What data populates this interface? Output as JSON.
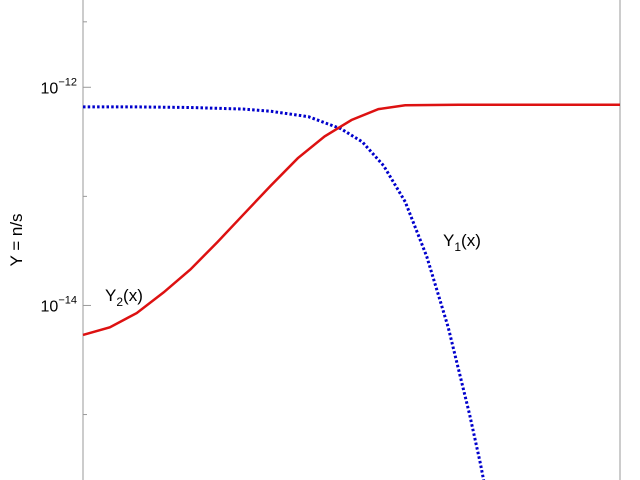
{
  "chart_data": {
    "type": "line",
    "title": "",
    "xlabel": "",
    "ylabel": "Y = n/s",
    "y_scale": "log",
    "ylim_log10": [
      -15.6,
      -11.2
    ],
    "xlim": [
      0,
      1
    ],
    "grid": false,
    "legend": "none",
    "y_major_ticks": [
      {
        "base": "10",
        "exp": "−12",
        "log10": -12
      },
      {
        "base": "10",
        "exp": "−14",
        "log10": -14
      }
    ],
    "y_minor_ticks_log10": [
      -11.4,
      -13,
      -15
    ],
    "series": [
      {
        "name": "Y1(x)",
        "label_main": "Y",
        "label_sub": "1",
        "label_tail": "(x)",
        "color": "#0000cc",
        "style": "dotted",
        "points": [
          [
            0,
            -12.18
          ],
          [
            0.1,
            -12.18
          ],
          [
            0.2,
            -12.185
          ],
          [
            0.3,
            -12.2
          ],
          [
            0.35,
            -12.22
          ],
          [
            0.42,
            -12.27
          ],
          [
            0.48,
            -12.38
          ],
          [
            0.52,
            -12.5
          ],
          [
            0.56,
            -12.72
          ],
          [
            0.6,
            -13.05
          ],
          [
            0.64,
            -13.55
          ],
          [
            0.68,
            -14.2
          ],
          [
            0.72,
            -15.0
          ],
          [
            0.74,
            -15.45
          ],
          [
            0.752,
            -15.75
          ]
        ]
      },
      {
        "name": "Y2(x)",
        "label_main": "Y",
        "label_sub": "2",
        "label_tail": "(x)",
        "color": "#dd1111",
        "style": "solid",
        "points": [
          [
            0,
            -14.27
          ],
          [
            0.05,
            -14.2
          ],
          [
            0.1,
            -14.07
          ],
          [
            0.15,
            -13.88
          ],
          [
            0.2,
            -13.67
          ],
          [
            0.25,
            -13.42
          ],
          [
            0.3,
            -13.16
          ],
          [
            0.35,
            -12.9
          ],
          [
            0.4,
            -12.65
          ],
          [
            0.45,
            -12.45
          ],
          [
            0.5,
            -12.3
          ],
          [
            0.55,
            -12.2
          ],
          [
            0.6,
            -12.165
          ],
          [
            0.7,
            -12.16
          ],
          [
            0.85,
            -12.16
          ],
          [
            1.0,
            -12.16
          ]
        ]
      }
    ]
  }
}
